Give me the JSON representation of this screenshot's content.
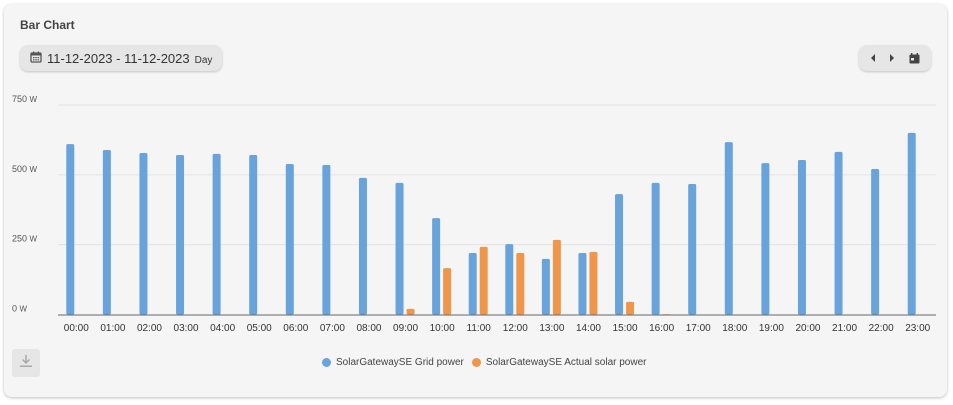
{
  "card": {
    "title": "Bar Chart"
  },
  "date_range": {
    "label": "11-12-2023 - 11-12-2023",
    "period": "Day",
    "icon": "calendar-icon"
  },
  "nav": {
    "prev_icon": "caret-left-icon",
    "next_icon": "caret-right-icon",
    "calendar_icon": "calendar-today-icon"
  },
  "download": {
    "icon": "download-icon"
  },
  "chart_data": {
    "type": "bar",
    "title": "",
    "categories": [
      "00:00",
      "01:00",
      "02:00",
      "03:00",
      "04:00",
      "05:00",
      "06:00",
      "07:00",
      "08:00",
      "09:00",
      "10:00",
      "11:00",
      "12:00",
      "13:00",
      "14:00",
      "15:00",
      "16:00",
      "17:00",
      "18:00",
      "19:00",
      "20:00",
      "21:00",
      "22:00",
      "23:00"
    ],
    "series": [
      {
        "name": "SolarGatewaySE Grid power",
        "color": "#68a3dc",
        "values": [
          610,
          589,
          578,
          571,
          575,
          571,
          539,
          535,
          489,
          471,
          345,
          220,
          252,
          199,
          220,
          431,
          471,
          467,
          617,
          542,
          553,
          582,
          521,
          650
        ]
      },
      {
        "name": "SolarGatewaySE Actual solar power",
        "color": "#ef964b",
        "values": [
          0,
          0,
          0,
          0,
          0,
          0,
          0,
          0,
          0,
          20,
          166,
          242,
          220,
          267,
          224,
          45,
          1,
          0,
          0,
          0,
          0,
          0,
          0,
          0
        ]
      }
    ],
    "yticks": [
      "0 W",
      "250 W",
      "500 W",
      "750 W"
    ],
    "ytick_values": [
      0,
      250,
      500,
      750
    ],
    "ylim": [
      0,
      750
    ],
    "unit": "W",
    "grid": true,
    "legend_position": "bottom"
  }
}
